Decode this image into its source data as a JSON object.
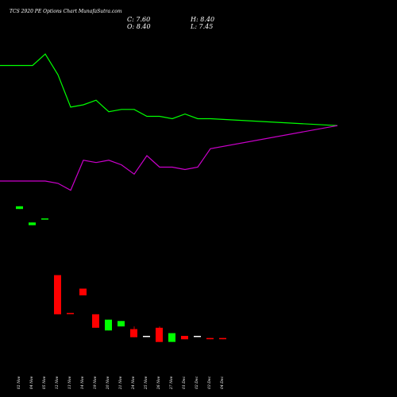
{
  "chart_data": {
    "type": "candlestick",
    "title": "TCS 2920 PE Options Chart MunafaSutra.com",
    "ohlc": {
      "close_label": "C: 7.60",
      "open_label": "O: 8.40",
      "high_label": "H: 8.40",
      "low_label": "L: 7.45"
    },
    "categories": [
      "02 Nov",
      "04 Nov",
      "05 Nov",
      "12 Nov",
      "13 Nov",
      "14 Nov",
      "19 Nov",
      "20 Nov",
      "21 Nov",
      "24 Nov",
      "25 Nov",
      "26 Nov",
      "27 Nov",
      "01 Dec",
      "02 Dec",
      "03 Dec",
      "04 Dec"
    ],
    "candles": [
      {
        "o": 106.0,
        "h": 106.0,
        "l": 104.0,
        "c": 104.0,
        "color": "green"
      },
      {
        "o": 94.0,
        "h": 94.0,
        "l": 92.0,
        "c": 92.0,
        "color": "green"
      },
      {
        "o": 97.0,
        "h": 97.0,
        "l": 97.0,
        "c": 97.0,
        "color": "green"
      },
      {
        "o": 55.0,
        "h": 55.0,
        "l": 26.0,
        "c": 26.0,
        "color": "red"
      },
      {
        "o": 27.0,
        "h": 27.0,
        "l": 27.0,
        "c": 27.0,
        "color": "red"
      },
      {
        "o": 45.0,
        "h": 45.0,
        "l": 40.0,
        "c": 40.0,
        "color": "red"
      },
      {
        "o": 26.0,
        "h": 26.0,
        "l": 16.0,
        "c": 16.0,
        "color": "red"
      },
      {
        "o": 14.0,
        "h": 22.0,
        "l": 14.0,
        "c": 22.0,
        "color": "green"
      },
      {
        "o": 17.0,
        "h": 21.0,
        "l": 17.0,
        "c": 21.0,
        "color": "green"
      },
      {
        "o": 15.0,
        "h": 17.0,
        "l": 9.0,
        "c": 9.0,
        "color": "red"
      },
      {
        "o": 10.0,
        "h": 10.0,
        "l": 10.0,
        "c": 10.0,
        "color": "white"
      },
      {
        "o": 16.0,
        "h": 17.0,
        "l": 5.5,
        "c": 5.5,
        "color": "red"
      },
      {
        "o": 5.5,
        "h": 12.0,
        "l": 5.5,
        "c": 12.0,
        "color": "green"
      },
      {
        "o": 10.0,
        "h": 10.0,
        "l": 7.5,
        "c": 7.5,
        "color": "red"
      },
      {
        "o": 10.0,
        "h": 10.0,
        "l": 10.0,
        "c": 10.0,
        "color": "white"
      },
      {
        "o": 8.4,
        "h": 8.4,
        "l": 7.45,
        "c": 7.6,
        "color": "red"
      },
      {
        "o": 8.4,
        "h": 8.4,
        "l": 7.45,
        "c": 7.6,
        "color": "red"
      }
    ],
    "series": [
      {
        "color": "#00ff00",
        "values": [
          1.0,
          1.0,
          1.05,
          0.96,
          0.82,
          0.83,
          0.85,
          0.8,
          0.81,
          0.81,
          0.78,
          0.78,
          0.77,
          0.79,
          0.77,
          0.77,
          0.74
        ]
      },
      {
        "color": "#cc00cc",
        "values": [
          0.5,
          0.5,
          0.5,
          0.49,
          0.46,
          0.59,
          0.58,
          0.59,
          0.57,
          0.53,
          0.61,
          0.56,
          0.56,
          0.55,
          0.56,
          0.64,
          0.74
        ]
      }
    ],
    "colors": {
      "background": "#000000",
      "up": "#00ff00",
      "down": "#ff0000",
      "neutral": "#ffffff"
    },
    "grid": false
  }
}
